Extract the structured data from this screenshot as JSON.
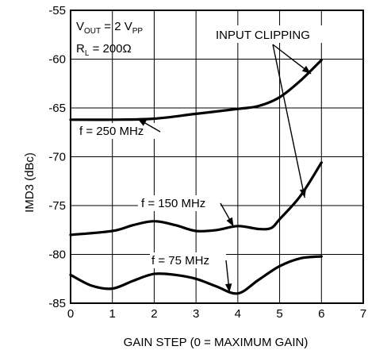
{
  "chart_data": {
    "type": "line",
    "xlabel": "GAIN STEP (0 = MAXIMUM GAIN)",
    "ylabel": "IMD3 (dBc)",
    "xlim": [
      0,
      7
    ],
    "ylim": [
      -85,
      -55
    ],
    "x_ticks": [
      "0",
      "1",
      "2",
      "3",
      "4",
      "5",
      "6",
      "7"
    ],
    "y_ticks": [
      "-55",
      "-60",
      "-65",
      "-70",
      "-75",
      "-80",
      "-85"
    ],
    "grid": true,
    "line_color": "#000000",
    "conditions": {
      "vout_main": "V",
      "vout_sub": "OUT",
      "vout_value": " = 2 V",
      "vout_unit_sub": "PP",
      "rl_main": "R",
      "rl_sub": "L",
      "rl_value": " = 200Ω"
    },
    "callout": "INPUT CLIPPING",
    "series": [
      {
        "name": "f = 250 MHz",
        "x": [
          0,
          1,
          2,
          3,
          4,
          4.5,
          5,
          5.5,
          6
        ],
        "y": [
          -66.2,
          -66.2,
          -66.1,
          -65.6,
          -65.1,
          -64.8,
          -63.9,
          -62.2,
          -60.1
        ]
      },
      {
        "name": "f = 150 MHz",
        "x": [
          0,
          1,
          1.5,
          2,
          2.5,
          3,
          3.5,
          4,
          4.5,
          4.8,
          5.0,
          5.5,
          6
        ],
        "y": [
          -78.0,
          -77.6,
          -77.0,
          -76.6,
          -77.0,
          -77.6,
          -77.5,
          -77.1,
          -77.4,
          -77.3,
          -76.4,
          -74.0,
          -70.6
        ]
      },
      {
        "name": "f = 75 MHz",
        "x": [
          0,
          0.5,
          1,
          1.5,
          2,
          2.5,
          3,
          3.5,
          4,
          4.5,
          5,
          5.5,
          6
        ],
        "y": [
          -82.1,
          -83.2,
          -83.5,
          -82.7,
          -82.0,
          -82.1,
          -82.5,
          -83.3,
          -84.0,
          -82.6,
          -81.2,
          -80.4,
          -80.2
        ]
      }
    ]
  }
}
